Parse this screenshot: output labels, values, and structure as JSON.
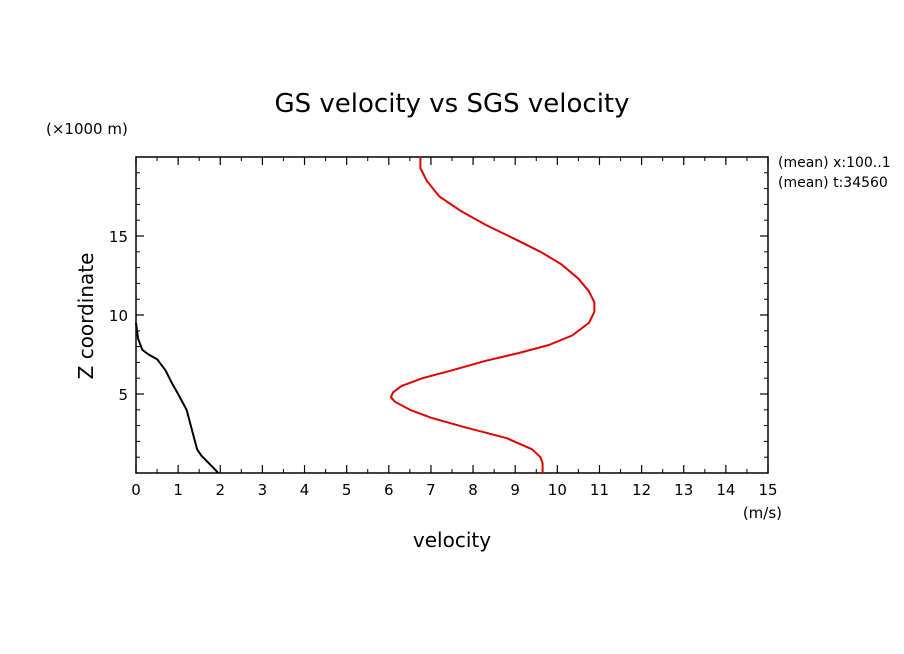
{
  "chart_data": {
    "type": "line",
    "title": "GS velocity vs SGS velocity",
    "xlabel": "velocity",
    "xunit": "(m/s)",
    "ylabel": "Z coordinate",
    "yunit": "(×1000 m)",
    "xlim": [
      0,
      15
    ],
    "ylim": [
      0,
      20
    ],
    "xticks": [
      0,
      1,
      2,
      3,
      4,
      5,
      6,
      7,
      8,
      9,
      10,
      11,
      12,
      13,
      14,
      15
    ],
    "xtick_labels": [
      "0",
      "1",
      "2",
      "3",
      "4",
      "5",
      "6",
      "7",
      "8",
      "9",
      "10",
      "11",
      "12",
      "13",
      "14",
      "15"
    ],
    "yticks": [
      5,
      10,
      15
    ],
    "ytick_labels": [
      "5",
      "10",
      "15"
    ],
    "annotations": [
      "(mean) x:100..1",
      "(mean) t:34560"
    ],
    "series": [
      {
        "name": "SGS velocity",
        "color": "#000000",
        "points": [
          [
            1.95,
            0.0
          ],
          [
            1.85,
            0.3
          ],
          [
            1.7,
            0.7
          ],
          [
            1.55,
            1.1
          ],
          [
            1.45,
            1.5
          ],
          [
            1.4,
            2.0
          ],
          [
            1.35,
            2.5
          ],
          [
            1.3,
            3.0
          ],
          [
            1.25,
            3.5
          ],
          [
            1.2,
            4.0
          ],
          [
            1.1,
            4.5
          ],
          [
            1.0,
            5.0
          ],
          [
            0.85,
            5.7
          ],
          [
            0.7,
            6.5
          ],
          [
            0.5,
            7.2
          ],
          [
            0.3,
            7.5
          ],
          [
            0.15,
            7.8
          ],
          [
            0.05,
            8.5
          ],
          [
            0.0,
            9.5
          ]
        ]
      },
      {
        "name": "GS velocity",
        "color": "#e00000",
        "points": [
          [
            9.65,
            0.0
          ],
          [
            9.65,
            0.6
          ],
          [
            9.6,
            1.0
          ],
          [
            9.4,
            1.5
          ],
          [
            8.8,
            2.2
          ],
          [
            7.8,
            2.9
          ],
          [
            7.0,
            3.5
          ],
          [
            6.5,
            4.0
          ],
          [
            6.15,
            4.5
          ],
          [
            6.05,
            4.8
          ],
          [
            6.1,
            5.1
          ],
          [
            6.3,
            5.5
          ],
          [
            6.8,
            6.0
          ],
          [
            7.5,
            6.5
          ],
          [
            8.3,
            7.1
          ],
          [
            9.1,
            7.6
          ],
          [
            9.8,
            8.1
          ],
          [
            10.35,
            8.7
          ],
          [
            10.75,
            9.5
          ],
          [
            10.88,
            10.2
          ],
          [
            10.88,
            10.8
          ],
          [
            10.75,
            11.5
          ],
          [
            10.5,
            12.3
          ],
          [
            10.1,
            13.2
          ],
          [
            9.6,
            14.0
          ],
          [
            9.0,
            14.8
          ],
          [
            8.3,
            15.7
          ],
          [
            7.7,
            16.6
          ],
          [
            7.2,
            17.5
          ],
          [
            6.9,
            18.5
          ],
          [
            6.75,
            19.3
          ],
          [
            6.75,
            20.0
          ]
        ]
      }
    ]
  }
}
